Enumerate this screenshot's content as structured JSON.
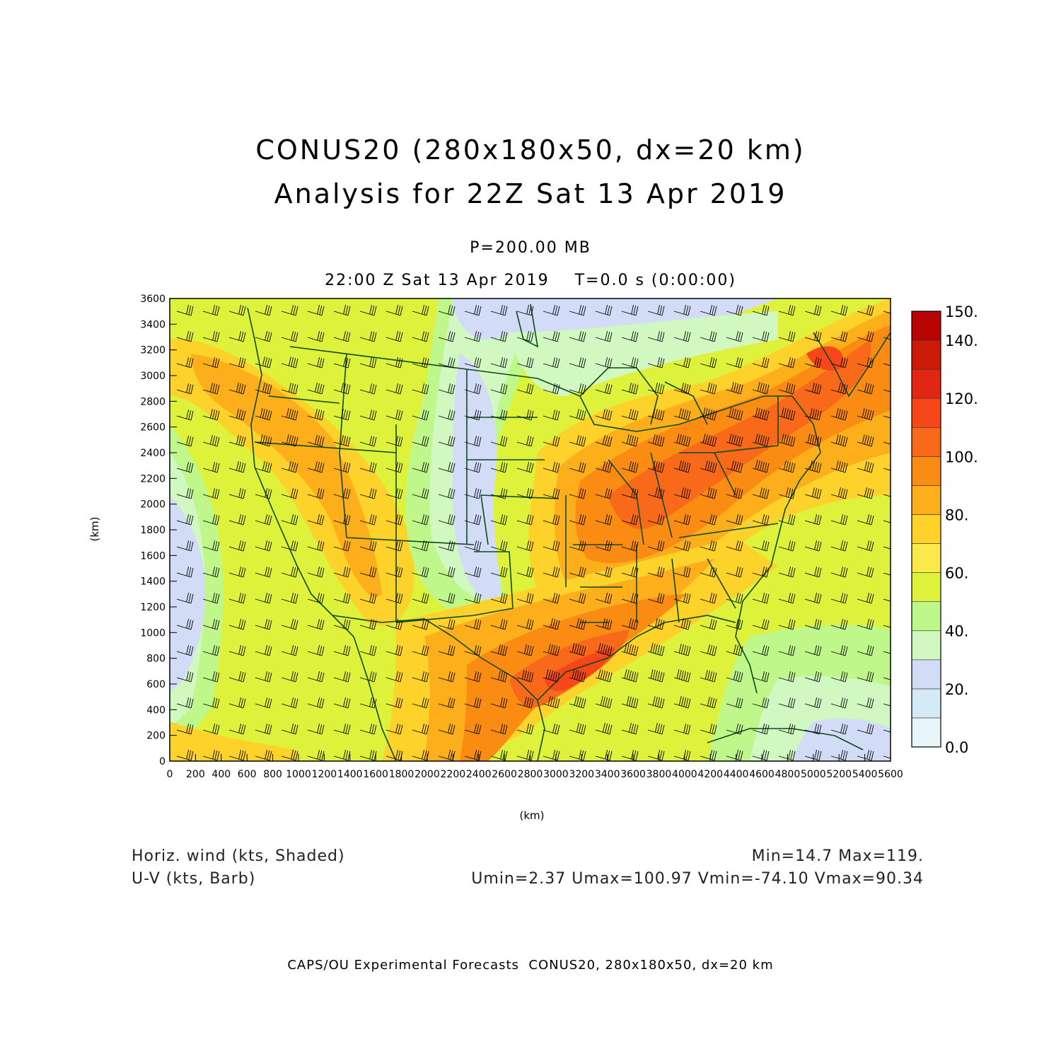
{
  "header": {
    "title_line1": "CONUS20 (280x180x50, dx=20 km)",
    "title_line2": "Analysis for 22Z Sat 13 Apr 2019",
    "level": "P=200.00 MB",
    "time_line": "22:00 Z Sat 13 Apr 2019    T=0.0 s (0:00:00)"
  },
  "axes": {
    "x_unit": "(km)",
    "y_unit": "(km)",
    "x_ticks": [
      "0",
      "200",
      "400",
      "600",
      "800",
      "1000",
      "1200",
      "1400",
      "1600",
      "1800",
      "2000",
      "2200",
      "2400",
      "2600",
      "2800",
      "3000",
      "3200",
      "3400",
      "3600",
      "3800",
      "4000",
      "4200",
      "4400",
      "4600",
      "4800",
      "5000",
      "5200",
      "5400",
      "5600"
    ],
    "y_ticks": [
      "0",
      "200",
      "400",
      "600",
      "800",
      "1000",
      "1200",
      "1400",
      "1600",
      "1800",
      "2000",
      "2200",
      "2400",
      "2600",
      "2800",
      "3000",
      "3200",
      "3400",
      "3600"
    ],
    "x_range": [
      0,
      5600
    ],
    "y_range": [
      0,
      3600
    ]
  },
  "colorbar": {
    "labels": [
      "0.0",
      "20.",
      "40.",
      "60.",
      "80.",
      "100.",
      "120.",
      "140.",
      "150."
    ],
    "colors": [
      "#e8f6fb",
      "#d4eaf7",
      "#d3dcf6",
      "#d0f8c0",
      "#bff78a",
      "#def23c",
      "#fbe94c",
      "#fdd22a",
      "#fdae1b",
      "#fb8c13",
      "#f86a1a",
      "#f6461a",
      "#e22614",
      "#cb1a08",
      "#b80404"
    ]
  },
  "legend": {
    "shaded_label": "Horiz. wind (kts, Shaded)",
    "barb_label": "U-V (kts, Barb)",
    "minmax": "Min=14.7 Max=119.",
    "uv_stats": "Umin=2.37 Umax=100.97 Vmin=-74.10 Vmax=90.34"
  },
  "credit": "CAPS/OU Experimental Forecasts  CONUS20, 280x180x50, dx=20 km"
}
